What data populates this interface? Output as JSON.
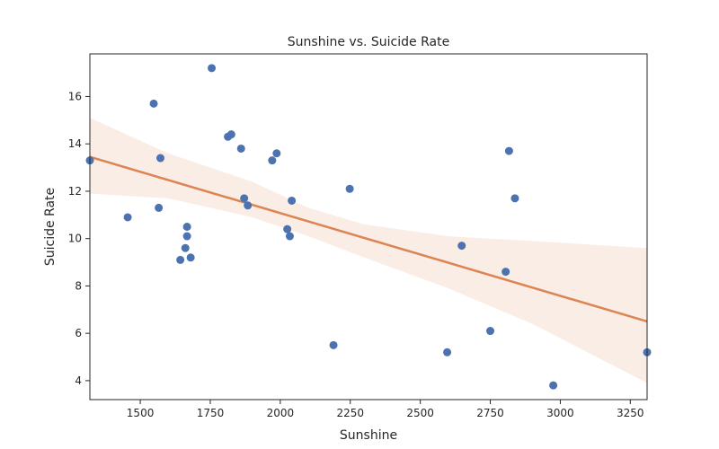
{
  "chart_data": {
    "type": "scatter",
    "title": "Sunshine vs. Suicide Rate",
    "xlabel": "Sunshine",
    "ylabel": "Suicide Rate",
    "xlim": [
      1320,
      3310
    ],
    "ylim": [
      3.2,
      17.8
    ],
    "xticks": [
      1500,
      1750,
      2000,
      2250,
      2500,
      2750,
      3000,
      3250
    ],
    "yticks": [
      4,
      6,
      8,
      10,
      12,
      14,
      16
    ],
    "points": [
      {
        "x": 1320,
        "y": 13.3
      },
      {
        "x": 1455,
        "y": 10.9
      },
      {
        "x": 1548,
        "y": 15.7
      },
      {
        "x": 1566,
        "y": 11.3
      },
      {
        "x": 1572,
        "y": 13.4
      },
      {
        "x": 1643,
        "y": 9.1
      },
      {
        "x": 1661,
        "y": 9.6
      },
      {
        "x": 1667,
        "y": 10.1
      },
      {
        "x": 1667,
        "y": 10.5
      },
      {
        "x": 1680,
        "y": 9.2
      },
      {
        "x": 1755,
        "y": 17.2
      },
      {
        "x": 1813,
        "y": 14.3
      },
      {
        "x": 1825,
        "y": 14.4
      },
      {
        "x": 1860,
        "y": 13.8
      },
      {
        "x": 1871,
        "y": 11.7
      },
      {
        "x": 1884,
        "y": 11.4
      },
      {
        "x": 1971,
        "y": 13.3
      },
      {
        "x": 1987,
        "y": 13.6
      },
      {
        "x": 2025,
        "y": 10.4
      },
      {
        "x": 2034,
        "y": 10.1
      },
      {
        "x": 2041,
        "y": 11.6
      },
      {
        "x": 2190,
        "y": 5.5
      },
      {
        "x": 2248,
        "y": 12.1
      },
      {
        "x": 2596,
        "y": 5.2
      },
      {
        "x": 2648,
        "y": 9.7
      },
      {
        "x": 2750,
        "y": 6.1
      },
      {
        "x": 2805,
        "y": 8.6
      },
      {
        "x": 2817,
        "y": 13.7
      },
      {
        "x": 2838,
        "y": 11.7
      },
      {
        "x": 2975,
        "y": 3.8
      },
      {
        "x": 3310,
        "y": 5.2
      }
    ],
    "regression": {
      "x": [
        1320,
        3310
      ],
      "y": [
        13.45,
        6.5
      ]
    },
    "confidence_band": {
      "x": [
        1320,
        1600,
        1900,
        2100,
        2300,
        2600,
        2900,
        3310
      ],
      "lower": [
        11.9,
        11.7,
        10.9,
        10.1,
        9.2,
        7.9,
        6.4,
        3.9
      ],
      "upper": [
        15.1,
        13.6,
        12.4,
        11.3,
        10.6,
        10.1,
        9.9,
        9.6
      ]
    },
    "colors": {
      "points": "#4c72b0",
      "line": "#dd8452",
      "band": "#dd8452"
    },
    "grid": false,
    "legend": "none"
  }
}
